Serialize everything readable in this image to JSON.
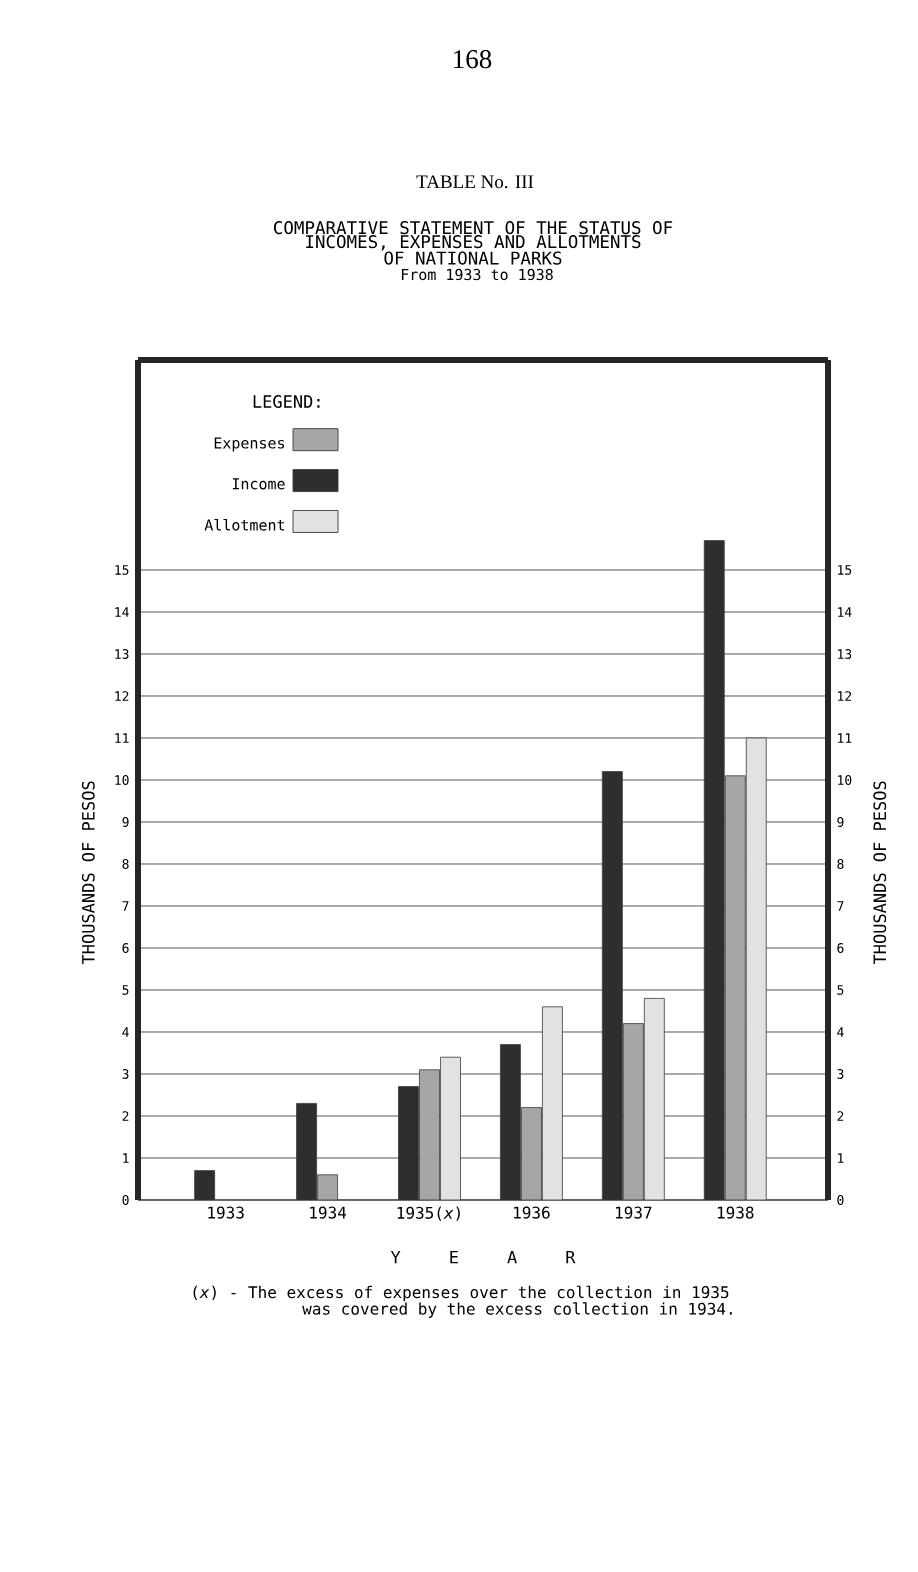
{
  "chart_data": {
    "type": "bar",
    "title": "COMPARATIVE STATEMENT OF THE STATUS OF INCOMES, EXPENSES AND ALLOTMENTS OF NATIONAL PARKS",
    "subtitle": "From 1933 to 1938",
    "xlabel": "Y E A R",
    "ylabel": "THOUSANDS OF PESOS",
    "y2label": "THOUSANDS OF PESOS",
    "legend_title": "LEGEND:",
    "annotations": [
      "168",
      "TABLE No. III",
      "(*x*) - The excess of expenses over the collection in 1935 was covered by the excess collection in 1934."
    ],
    "categories": [
      "1933",
      "1934",
      "1935(*x*)",
      "1936",
      "1937",
      "1938"
    ],
    "series": [
      {
        "name": "Income",
        "color": "#2e2e2e",
        "values": [
          0.7,
          2.3,
          2.7,
          3.7,
          10.2,
          15.7
        ]
      },
      {
        "name": "Expenses",
        "color": "#a6a6a6",
        "values": [
          null,
          0.6,
          3.1,
          2.2,
          4.2,
          10.1
        ]
      },
      {
        "name": "Allotment",
        "color": "#e2e2e2",
        "values": [
          null,
          null,
          3.4,
          4.6,
          4.8,
          11.0
        ]
      }
    ],
    "ylim": [
      0,
      20
    ],
    "yticks": [
      0,
      1,
      2,
      3,
      4,
      5,
      6,
      7,
      8,
      9,
      10,
      11,
      12,
      13,
      14,
      15
    ],
    "y2lim": [
      0,
      20
    ],
    "y2ticks": [
      0,
      1,
      2,
      3,
      4,
      5,
      6,
      7,
      8,
      9,
      10,
      11,
      12,
      13,
      14,
      15
    ],
    "grid": "y",
    "legend": "top left"
  }
}
